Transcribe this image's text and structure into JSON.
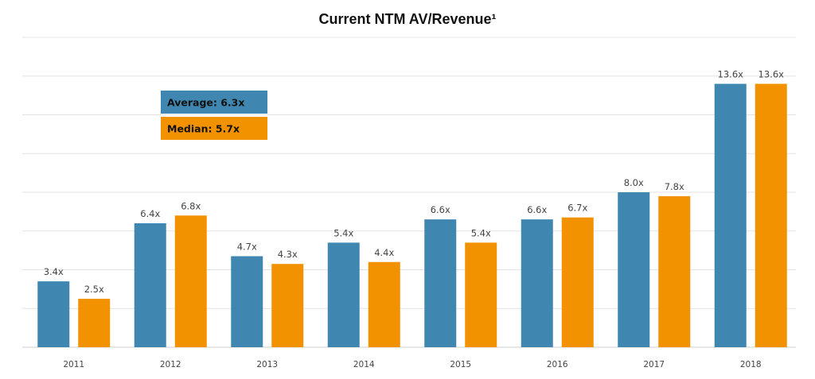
{
  "chart_data": {
    "type": "bar",
    "title": "Current NTM AV/Revenue¹",
    "xlabel": "",
    "ylabel": "",
    "categories": [
      "2011",
      "2012",
      "2013",
      "2014",
      "2015",
      "2016",
      "2017",
      "2018"
    ],
    "series": [
      {
        "color": "#3f87b0",
        "values": [
          3.4,
          6.4,
          4.7,
          5.4,
          6.6,
          6.6,
          8.0,
          13.6
        ],
        "labels": [
          "3.4x",
          "6.4x",
          "4.7x",
          "5.4x",
          "6.6x",
          "6.6x",
          "8.0x",
          "13.6x"
        ]
      },
      {
        "color": "#f39200",
        "values": [
          2.5,
          6.8,
          4.3,
          4.4,
          5.4,
          6.7,
          7.8,
          13.6
        ],
        "labels": [
          "2.5x",
          "6.8x",
          "4.3x",
          "4.4x",
          "5.4x",
          "6.7x",
          "7.8x",
          "13.6x"
        ]
      }
    ],
    "ylim": [
      0,
      16
    ],
    "grid": true,
    "annotations": [
      {
        "text": "Average: 6.3x",
        "color": "#3f87b0"
      },
      {
        "text": "Median: 5.7x",
        "color": "#f39200"
      }
    ]
  }
}
